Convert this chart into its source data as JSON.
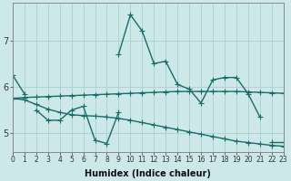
{
  "xlabel": "Humidex (Indice chaleur)",
  "xlim": [
    0,
    23
  ],
  "ylim": [
    4.6,
    7.8
  ],
  "yticks": [
    5,
    6,
    7
  ],
  "xticks": [
    0,
    1,
    2,
    3,
    4,
    5,
    6,
    7,
    8,
    9,
    10,
    11,
    12,
    13,
    14,
    15,
    16,
    17,
    18,
    19,
    20,
    21,
    22,
    23
  ],
  "bg_color": "#cce8e8",
  "grid_color": "#aad0d0",
  "line_color": "#1a6b6b",
  "line_width": 1.0,
  "marker": "+",
  "marker_size": 4,
  "lines": [
    {
      "x": [
        0,
        1
      ],
      "y": [
        6.25,
        5.85
      ]
    },
    {
      "x": [
        2,
        3,
        4,
        5,
        6,
        7,
        8,
        9
      ],
      "y": [
        5.5,
        5.28,
        5.28,
        5.5,
        5.58,
        4.85,
        4.78,
        5.45
      ]
    },
    {
      "x": [
        9,
        10,
        11,
        12,
        13,
        14,
        15,
        16,
        17,
        18,
        19,
        20,
        21
      ],
      "y": [
        6.7,
        7.55,
        7.2,
        6.5,
        6.55,
        6.05,
        5.95,
        5.65,
        6.15,
        6.2,
        6.2,
        5.85,
        5.35
      ]
    },
    {
      "x": [
        22,
        23
      ],
      "y": [
        4.82,
        4.82
      ]
    },
    {
      "x": [
        0,
        1,
        2,
        3,
        4,
        5,
        6,
        7,
        8,
        9,
        10,
        11,
        12,
        13,
        14,
        15,
        16,
        17,
        18,
        19,
        20,
        21,
        22,
        23
      ],
      "y": [
        5.75,
        5.77,
        5.78,
        5.79,
        5.8,
        5.81,
        5.82,
        5.83,
        5.84,
        5.85,
        5.86,
        5.87,
        5.88,
        5.89,
        5.9,
        5.9,
        5.9,
        5.9,
        5.9,
        5.9,
        5.89,
        5.88,
        5.87,
        5.86
      ]
    },
    {
      "x": [
        0,
        1,
        2,
        3,
        4,
        5,
        6,
        7,
        8,
        9,
        10,
        11,
        12,
        13,
        14,
        15,
        16,
        17,
        18,
        19,
        20,
        21,
        22,
        23
      ],
      "y": [
        5.75,
        5.72,
        5.62,
        5.52,
        5.45,
        5.4,
        5.38,
        5.37,
        5.35,
        5.32,
        5.28,
        5.23,
        5.18,
        5.13,
        5.08,
        5.03,
        4.98,
        4.93,
        4.88,
        4.83,
        4.8,
        4.77,
        4.74,
        4.72
      ]
    }
  ]
}
